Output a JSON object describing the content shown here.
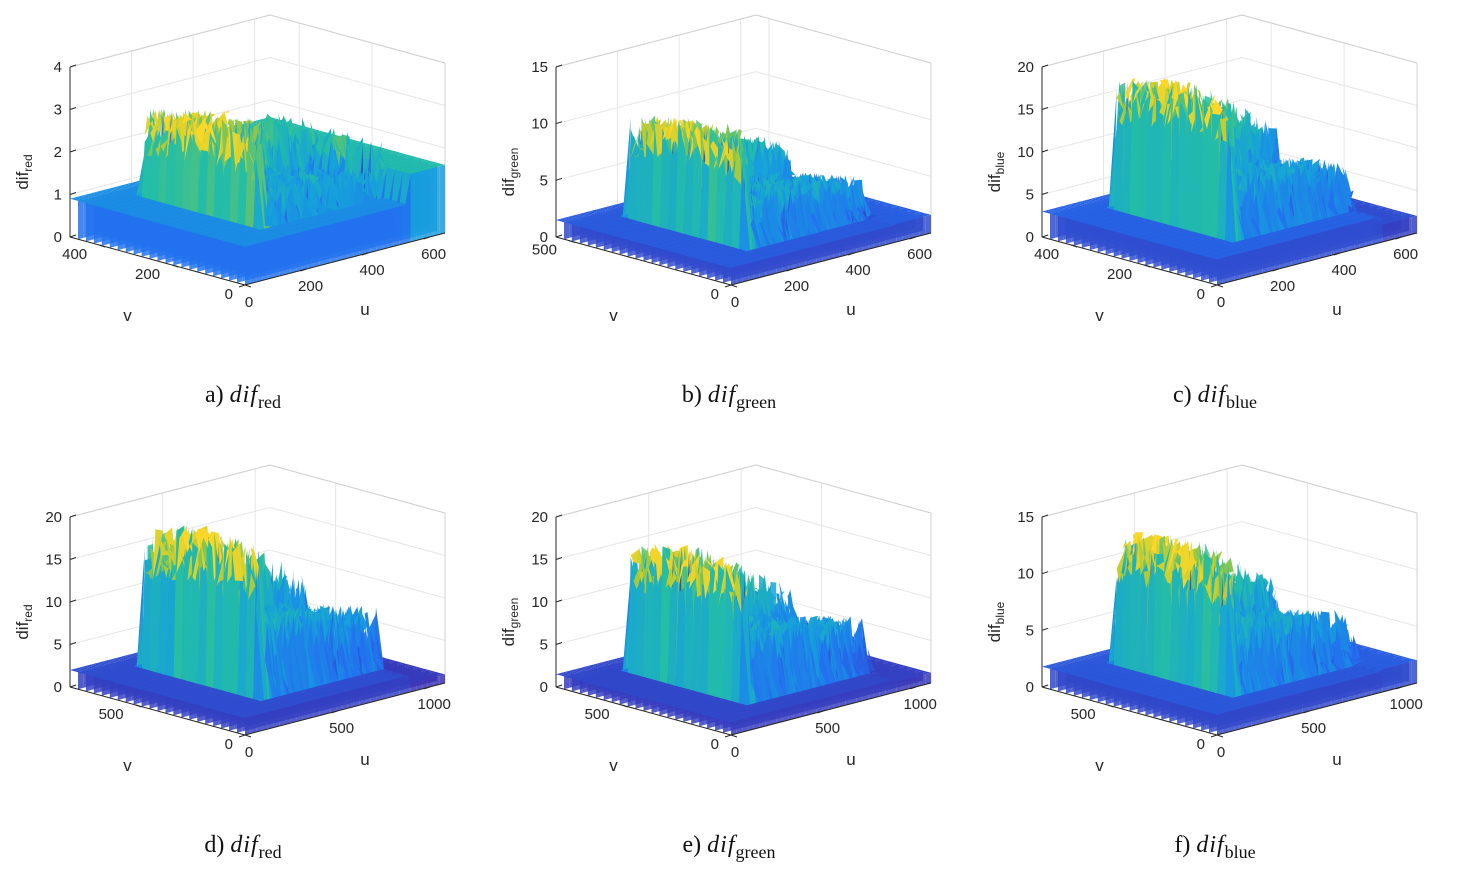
{
  "chart_data": [
    {
      "type": "surface",
      "caption_letter": "a)",
      "caption_main": "dif",
      "caption_sub": "red",
      "zlabel_main": "dif",
      "zlabel_sub": "red",
      "xlabel": "u",
      "ylabel": "v",
      "zlim": [
        0,
        4
      ],
      "ulim": [
        0,
        650
      ],
      "vlim": [
        0,
        480
      ],
      "z_ticks": [
        "0",
        "1",
        "2",
        "3",
        "4"
      ],
      "u_ticks": [
        "0",
        "200",
        "400",
        "600"
      ],
      "v_ticks": [
        "0",
        "200",
        "400"
      ],
      "colormap": "parula",
      "profile": {
        "base": 0.9,
        "high": 2.6,
        "right": 1.6,
        "noise": 1.2
      }
    },
    {
      "type": "surface",
      "caption_letter": "b)",
      "caption_main": "dif",
      "caption_sub": "green",
      "zlabel_main": "dif",
      "zlabel_sub": "green",
      "xlabel": "u",
      "ylabel": "v",
      "zlim": [
        0,
        15
      ],
      "ulim": [
        0,
        650
      ],
      "vlim": [
        0,
        540
      ],
      "z_ticks": [
        "0",
        "5",
        "10",
        "15"
      ],
      "u_ticks": [
        "0",
        "200",
        "400",
        "600"
      ],
      "v_ticks": [
        "0",
        "500"
      ],
      "colormap": "parula",
      "profile": {
        "base": 1.5,
        "high": 9.5,
        "right": 1.6,
        "noise": 4
      }
    },
    {
      "type": "surface",
      "caption_letter": "c)",
      "caption_main": "dif",
      "caption_sub": "blue",
      "zlabel_main": "dif",
      "zlabel_sub": "blue",
      "xlabel": "u",
      "ylabel": "v",
      "zlim": [
        0,
        20
      ],
      "ulim": [
        0,
        650
      ],
      "vlim": [
        0,
        480
      ],
      "z_ticks": [
        "0",
        "5",
        "10",
        "15",
        "20"
      ],
      "u_ticks": [
        "0",
        "200",
        "400",
        "600"
      ],
      "v_ticks": [
        "0",
        "200",
        "400"
      ],
      "colormap": "parula",
      "profile": {
        "base": 3,
        "high": 17,
        "right": 2,
        "noise": 6
      }
    },
    {
      "type": "surface",
      "caption_letter": "d)",
      "caption_main": "dif",
      "caption_sub": "red",
      "zlabel_main": "dif",
      "zlabel_sub": "red",
      "xlabel": "u",
      "ylabel": "v",
      "zlim": [
        0,
        20
      ],
      "ulim": [
        0,
        1080
      ],
      "vlim": [
        0,
        800
      ],
      "z_ticks": [
        "0",
        "5",
        "10",
        "15",
        "20"
      ],
      "u_ticks": [
        "0",
        "500",
        "1000"
      ],
      "v_ticks": [
        "0",
        "500"
      ],
      "colormap": "parula",
      "profile": {
        "base": 2,
        "high": 17,
        "right": 1,
        "noise": 7
      }
    },
    {
      "type": "surface",
      "caption_letter": "e)",
      "caption_main": "dif",
      "caption_sub": "green",
      "zlabel_main": "dif",
      "zlabel_sub": "green",
      "xlabel": "u",
      "ylabel": "v",
      "zlim": [
        0,
        20
      ],
      "ulim": [
        0,
        1080
      ],
      "vlim": [
        0,
        800
      ],
      "z_ticks": [
        "0",
        "5",
        "10",
        "15",
        "20"
      ],
      "u_ticks": [
        "0",
        "500",
        "1000"
      ],
      "v_ticks": [
        "0",
        "500"
      ],
      "colormap": "parula",
      "profile": {
        "base": 1.5,
        "high": 15,
        "right": 1.2,
        "noise": 6
      }
    },
    {
      "type": "surface",
      "caption_letter": "f)",
      "caption_main": "dif",
      "caption_sub": "blue",
      "zlabel_main": "dif",
      "zlabel_sub": "blue",
      "xlabel": "u",
      "ylabel": "v",
      "zlim": [
        0,
        15
      ],
      "ulim": [
        0,
        1080
      ],
      "vlim": [
        0,
        800
      ],
      "z_ticks": [
        "0",
        "5",
        "10",
        "15"
      ],
      "u_ticks": [
        "0",
        "500",
        "1000"
      ],
      "v_ticks": [
        "0",
        "500"
      ],
      "colormap": "parula",
      "profile": {
        "base": 1.8,
        "high": 12,
        "right": 2,
        "noise": 5
      }
    }
  ]
}
